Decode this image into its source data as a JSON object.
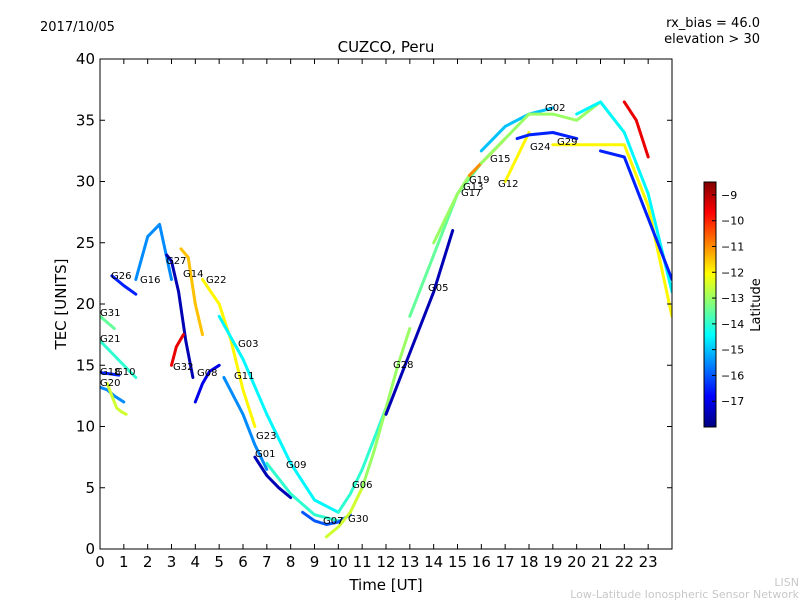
{
  "chart_data": {
    "type": "line",
    "title": "CUZCO, Peru",
    "date": "2017/10/05",
    "params": [
      "rx_bias = 46.0",
      "elevation > 30"
    ],
    "xlabel": "Time [UT]",
    "ylabel": "TEC [UNITS]",
    "xlim": [
      0,
      24
    ],
    "ylim": [
      0,
      40
    ],
    "xticks": [
      "0",
      "1",
      "2",
      "3",
      "4",
      "5",
      "6",
      "7",
      "8",
      "9",
      "10",
      "11",
      "12",
      "13",
      "14",
      "15",
      "16",
      "17",
      "18",
      "19",
      "20",
      "21",
      "22",
      "23"
    ],
    "yticks": [
      "0",
      "5",
      "10",
      "15",
      "20",
      "25",
      "30",
      "35",
      "40"
    ],
    "grid": false,
    "colorbar": {
      "label": "Latitude",
      "range": [
        -18,
        -8.5
      ],
      "ticks": [
        "−9",
        "−10",
        "−11",
        "−12",
        "−13",
        "−14",
        "−15",
        "−16",
        "−17"
      ],
      "colormap": [
        "#00007f",
        "#0000ff",
        "#007fff",
        "#00ffff",
        "#7fff7f",
        "#ffff00",
        "#ff7f00",
        "#ff0000",
        "#7f0000"
      ]
    },
    "series": [
      {
        "name": "G20",
        "lat": -15.5,
        "x": [
          0.0,
          0.3,
          0.6,
          1.0
        ],
        "y": [
          13.2,
          13.0,
          12.5,
          12.0
        ]
      },
      {
        "name": "G23",
        "lat": -16.5,
        "x": [
          0.0,
          0.4,
          0.8
        ],
        "y": [
          14.4,
          14.3,
          14.2
        ]
      },
      {
        "name": "G10",
        "lat": -12.5,
        "x": [
          0.3,
          0.5,
          0.7,
          0.9,
          1.1
        ],
        "y": [
          13.5,
          12.5,
          11.5,
          11.2,
          11.0
        ]
      },
      {
        "name": "G31",
        "lat": -13.5,
        "x": [
          0.0,
          0.3,
          0.6
        ],
        "y": [
          19.0,
          18.5,
          18.0
        ]
      },
      {
        "name": "G21",
        "lat": -14.0,
        "x": [
          0.0,
          0.5,
          1.0,
          1.5
        ],
        "y": [
          17.0,
          16.0,
          15.0,
          14.0
        ]
      },
      {
        "name": "G26",
        "lat": -16.5,
        "x": [
          0.5,
          1.0,
          1.5
        ],
        "y": [
          22.3,
          21.5,
          20.8
        ]
      },
      {
        "name": "G16",
        "lat": -15.5,
        "x": [
          1.5,
          2.0,
          2.5,
          3.0
        ],
        "y": [
          22.0,
          25.5,
          26.5,
          22.0
        ]
      },
      {
        "name": "G27",
        "lat": -17.5,
        "x": [
          2.8,
          3.0,
          3.3,
          3.6,
          3.9
        ],
        "y": [
          24.0,
          23.5,
          21.0,
          17.0,
          14.0
        ]
      },
      {
        "name": "G14",
        "lat": -11.5,
        "x": [
          3.4,
          3.7,
          4.0,
          4.3
        ],
        "y": [
          24.5,
          23.8,
          20.0,
          17.5
        ]
      },
      {
        "name": "G22",
        "lat": -12.0,
        "x": [
          4.3,
          5.0,
          5.5,
          6.0,
          6.5
        ],
        "y": [
          22.0,
          20.0,
          17.0,
          13.0,
          10.0
        ]
      },
      {
        "name": "G32",
        "lat": -9.5,
        "x": [
          3.0,
          3.2,
          3.5
        ],
        "y": [
          15.0,
          16.5,
          17.5
        ]
      },
      {
        "name": "G08",
        "lat": -17.0,
        "x": [
          4.0,
          4.3,
          4.6,
          5.0
        ],
        "y": [
          12.0,
          13.5,
          14.5,
          15.0
        ]
      },
      {
        "name": "G03",
        "lat": -14.5,
        "x": [
          5.0,
          6.0,
          7.0,
          8.0,
          9.0,
          10.0
        ],
        "y": [
          19.0,
          15.5,
          11.0,
          7.0,
          4.0,
          3.0
        ]
      },
      {
        "name": "G11",
        "lat": -15.5,
        "x": [
          5.2,
          6.0,
          6.5,
          7.0
        ],
        "y": [
          14.0,
          11.0,
          8.5,
          6.5
        ]
      },
      {
        "name": "G01",
        "lat": -17.5,
        "x": [
          6.5,
          7.0,
          7.5,
          8.0
        ],
        "y": [
          7.5,
          6.0,
          5.0,
          4.2
        ]
      },
      {
        "name": "G09",
        "lat": -14.0,
        "x": [
          7.0,
          8.0,
          9.0,
          10.0
        ],
        "y": [
          7.0,
          4.5,
          2.8,
          2.3
        ]
      },
      {
        "name": "G07",
        "lat": -16.0,
        "x": [
          8.5,
          9.0,
          9.5,
          10.0,
          10.5
        ],
        "y": [
          3.0,
          2.3,
          2.0,
          2.2,
          2.8
        ]
      },
      {
        "name": "G30",
        "lat": -12.5,
        "x": [
          9.5,
          10.0,
          10.5,
          11.0
        ],
        "y": [
          1.0,
          1.8,
          3.0,
          5.0
        ]
      },
      {
        "name": "G06",
        "lat": -14.0,
        "x": [
          10.0,
          10.5,
          11.0,
          11.5,
          12.0
        ],
        "y": [
          3.0,
          4.5,
          6.5,
          9.0,
          11.5
        ]
      },
      {
        "name": "G28",
        "lat": -13.0,
        "x": [
          11.0,
          11.5,
          12.0,
          12.5,
          13.0
        ],
        "y": [
          5.0,
          8.0,
          11.5,
          15.0,
          18.0
        ]
      },
      {
        "name": "G05",
        "lat": -17.5,
        "x": [
          12.0,
          13.0,
          14.0,
          14.8
        ],
        "y": [
          11.0,
          16.0,
          21.0,
          26.0
        ]
      },
      {
        "name": "G13",
        "lat": -13.5,
        "x": [
          13.0,
          14.0,
          15.0,
          16.0
        ],
        "y": [
          19.0,
          24.0,
          29.0,
          31.5
        ]
      },
      {
        "name": "G17",
        "lat": -13.0,
        "x": [
          14.0,
          15.0,
          15.5
        ],
        "y": [
          25.0,
          29.0,
          30.5
        ]
      },
      {
        "name": "G19",
        "lat": -11.0,
        "x": [
          15.5,
          16.0,
          16.5,
          17.0
        ],
        "y": [
          30.5,
          31.5,
          32.5,
          33.5
        ]
      },
      {
        "name": "G15",
        "lat": -15.0,
        "x": [
          16.0,
          17.0,
          18.0,
          19.0
        ],
        "y": [
          32.5,
          34.5,
          35.5,
          36.0
        ]
      },
      {
        "name": "G12",
        "lat": -12.0,
        "x": [
          17.0,
          17.5,
          18.0
        ],
        "y": [
          30.0,
          32.0,
          34.0
        ]
      },
      {
        "name": "G24",
        "lat": -16.5,
        "x": [
          17.5,
          18.0,
          19.0,
          20.0
        ],
        "y": [
          33.5,
          33.8,
          34.0,
          33.5
        ]
      },
      {
        "name": "G02",
        "lat": -13.0,
        "x": [
          16.0,
          17.0,
          18.0,
          19.0,
          20.0,
          21.0,
          22.0
        ],
        "y": [
          31.5,
          33.5,
          35.5,
          35.5,
          35.0,
          36.5,
          34.0
        ]
      },
      {
        "name": "G29",
        "lat": -12.0,
        "x": [
          19.0,
          20.0,
          21.0,
          22.0,
          23.0,
          24.0
        ],
        "y": [
          33.0,
          33.0,
          33.0,
          33.0,
          28.0,
          19.0
        ]
      },
      {
        "name": "",
        "lat": -14.5,
        "x": [
          20.0,
          21.0,
          22.0,
          23.0,
          24.0
        ],
        "y": [
          35.5,
          36.5,
          34.0,
          29.0,
          21.0
        ]
      },
      {
        "name": "",
        "lat": -9.5,
        "x": [
          22.0,
          22.5,
          23.0
        ],
        "y": [
          36.5,
          35.0,
          32.0
        ]
      },
      {
        "name": "",
        "lat": -16.5,
        "x": [
          21.0,
          22.0,
          23.0,
          24.0
        ],
        "y": [
          32.5,
          32.0,
          27.0,
          22.0
        ]
      }
    ],
    "annotations": [
      "G02",
      "G29",
      "G24",
      "G15",
      "G19",
      "G13",
      "G17",
      "G12",
      "G05",
      "G28",
      "G06",
      "G30",
      "G07",
      "G09",
      "G01",
      "G23",
      "G11",
      "G03",
      "G08",
      "G32",
      "G22",
      "G14",
      "G27",
      "G26",
      "G16",
      "G31",
      "G21",
      "G18",
      "G10",
      "G20"
    ]
  },
  "footer": {
    "line1": "LISN",
    "line2": "Low-Latitude Ionospheric Sensor Network"
  }
}
